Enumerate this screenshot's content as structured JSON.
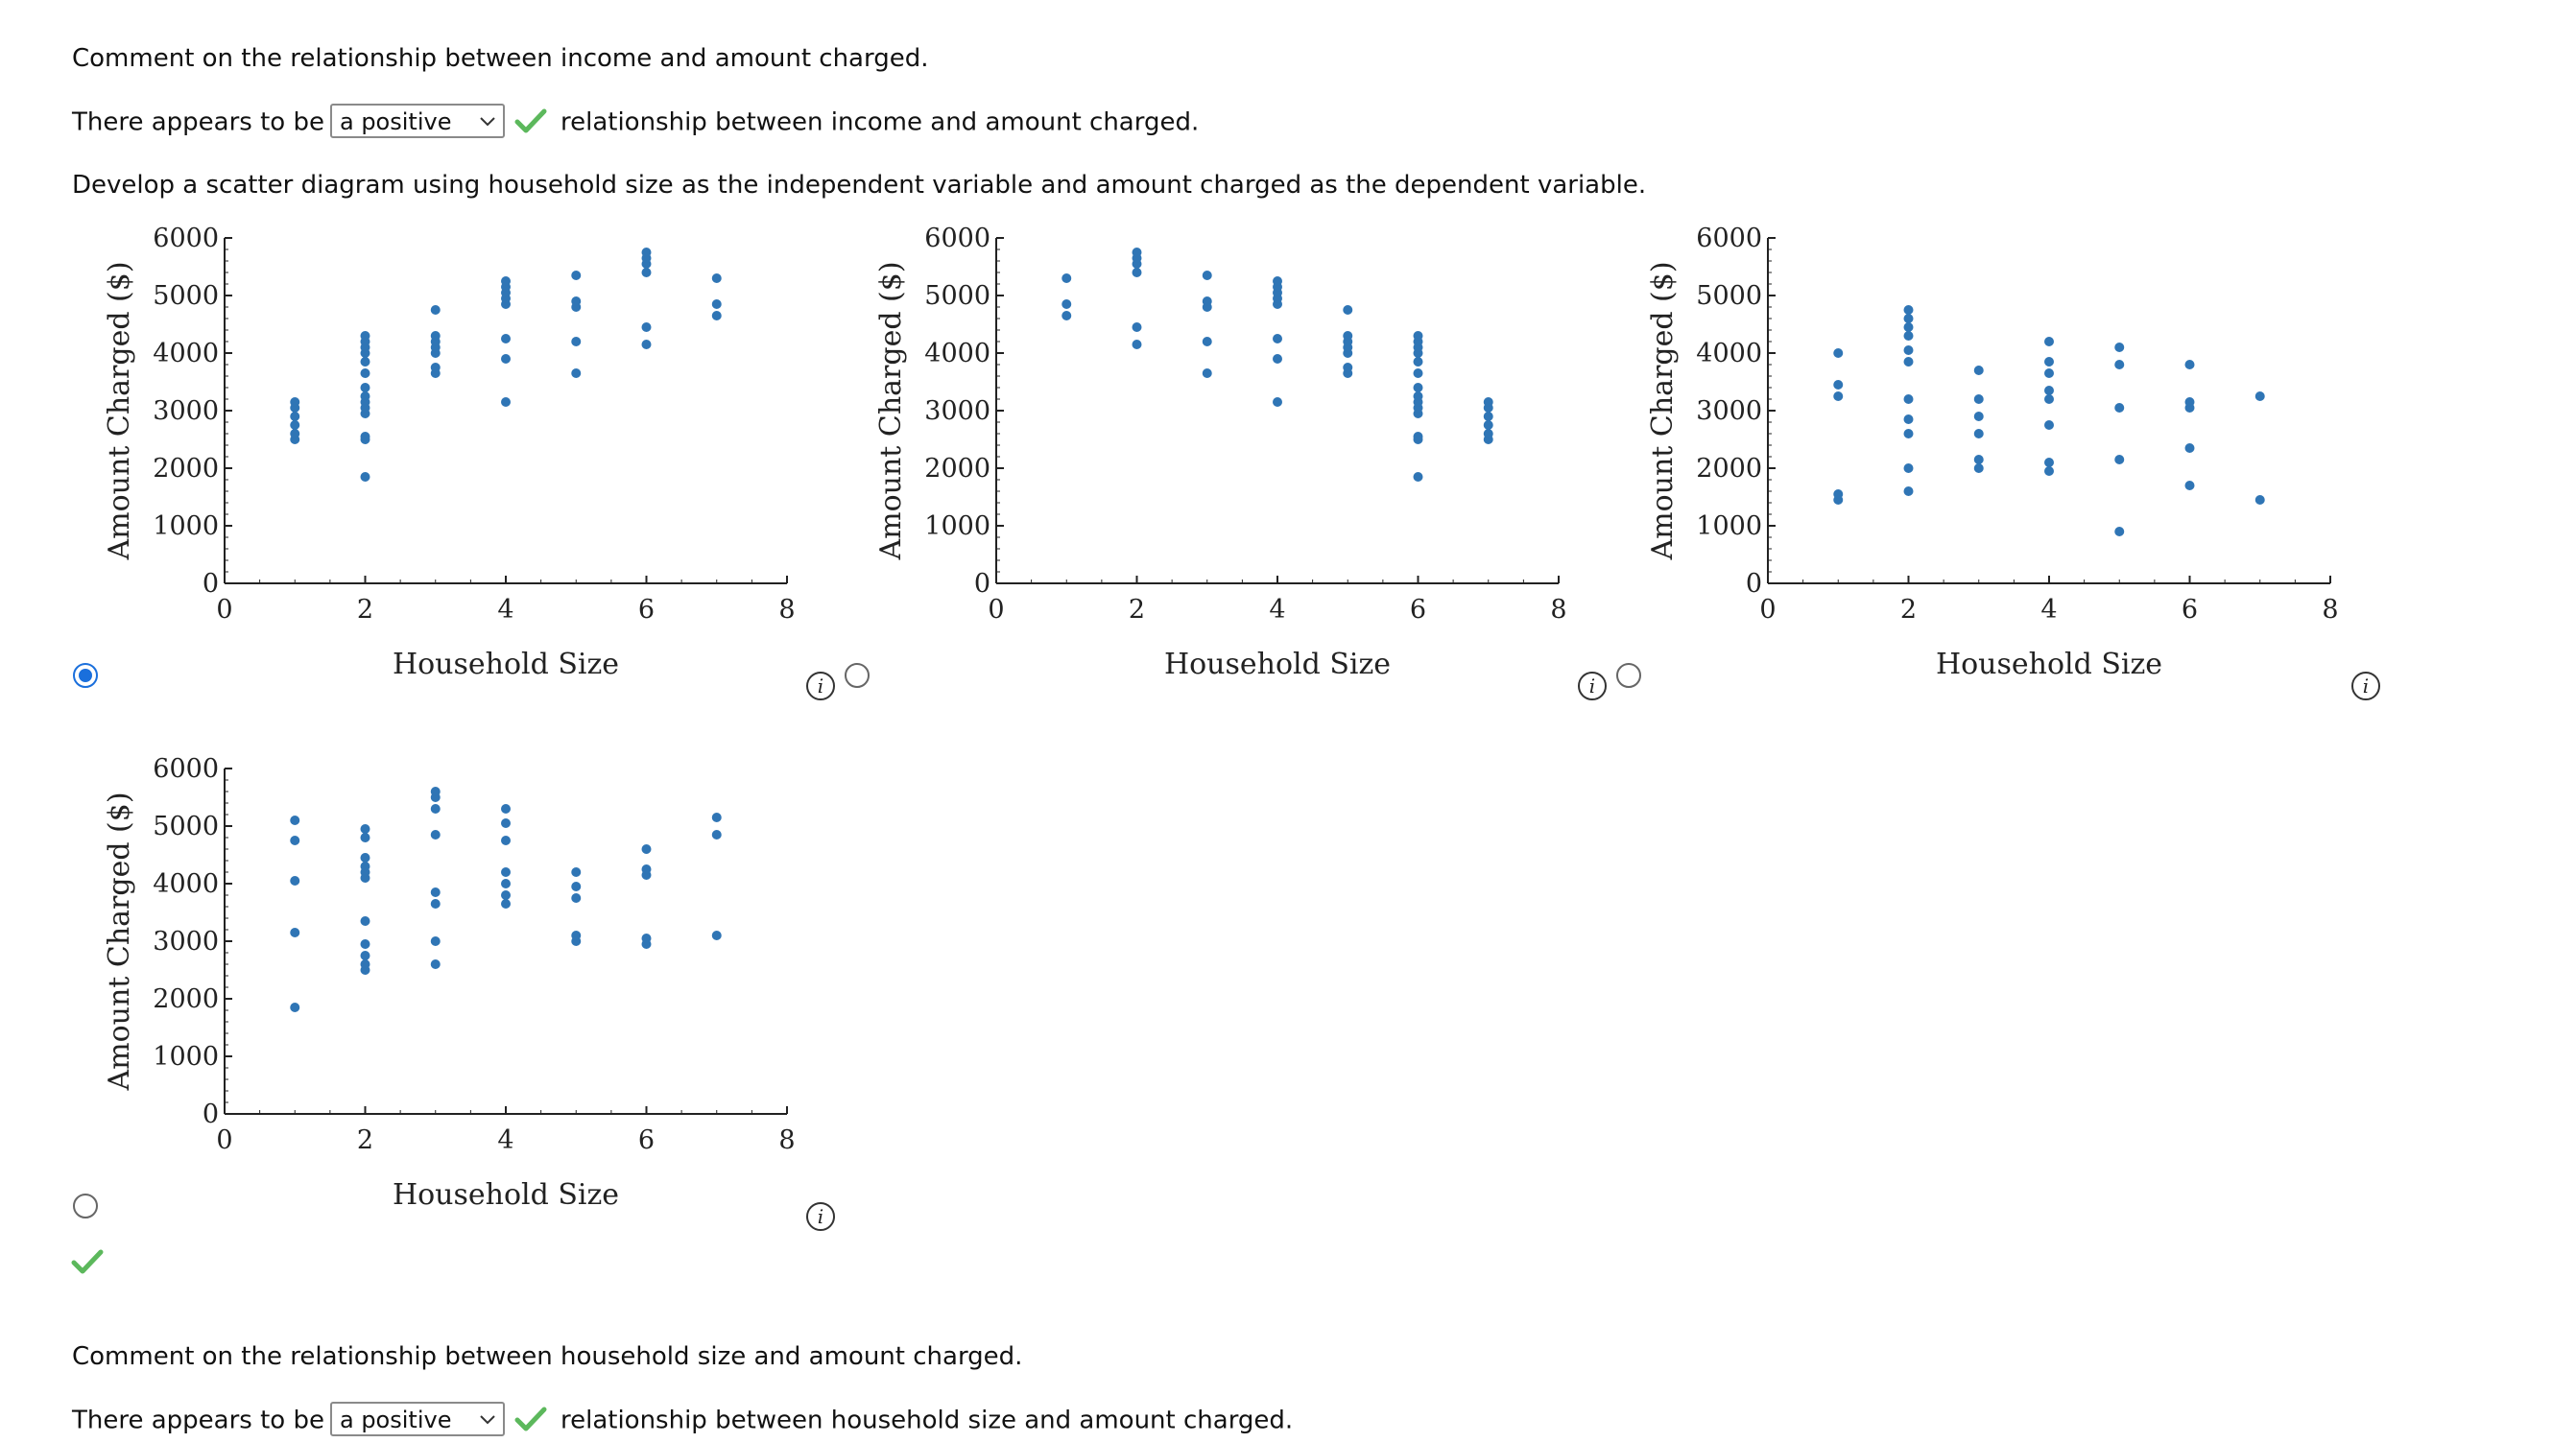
{
  "q1": {
    "prompt": "Comment on the relationship between income and amount charged.",
    "prefix": "There appears to be",
    "selected": "a positive",
    "suffix": "relationship between income and amount charged."
  },
  "q2": {
    "prompt": "Develop a scatter diagram using household size as the independent variable and amount charged as the dependent variable."
  },
  "q3": {
    "prompt": "Comment on the relationship between household size and amount charged.",
    "prefix": "There appears to be",
    "selected": "a positive",
    "suffix": "relationship between household size and amount charged."
  },
  "options": [
    {
      "selected": true
    },
    {
      "selected": false
    },
    {
      "selected": false
    },
    {
      "selected": false
    }
  ],
  "icons": {
    "check": "check-icon",
    "info": "info-icon",
    "chevron": "chevron-down-icon",
    "check_color": "#5cb85c",
    "accent": "#1a6fdc",
    "point_color": "#2f75b5"
  },
  "chart_data": [
    {
      "type": "scatter",
      "xlabel": "Household Size",
      "ylabel": "Amount Charged ($)",
      "xlim": [
        0,
        8
      ],
      "ylim": [
        0,
        6000
      ],
      "xticks": [
        "0",
        "2",
        "4",
        "6",
        "8"
      ],
      "yticks": [
        "0",
        "1000",
        "2000",
        "3000",
        "4000",
        "5000",
        "6000"
      ],
      "points": [
        [
          1,
          2500
        ],
        [
          1,
          2600
        ],
        [
          1,
          2750
        ],
        [
          1,
          2900
        ],
        [
          1,
          3050
        ],
        [
          1,
          3150
        ],
        [
          2,
          1850
        ],
        [
          2,
          2500
        ],
        [
          2,
          2550
        ],
        [
          2,
          2950
        ],
        [
          2,
          3050
        ],
        [
          2,
          3150
        ],
        [
          2,
          3250
        ],
        [
          2,
          3400
        ],
        [
          2,
          3650
        ],
        [
          2,
          3850
        ],
        [
          2,
          4000
        ],
        [
          2,
          4100
        ],
        [
          2,
          4200
        ],
        [
          2,
          4300
        ],
        [
          3,
          3650
        ],
        [
          3,
          3750
        ],
        [
          3,
          4000
        ],
        [
          3,
          4100
        ],
        [
          3,
          4200
        ],
        [
          3,
          4300
        ],
        [
          3,
          4750
        ],
        [
          4,
          3150
        ],
        [
          4,
          3900
        ],
        [
          4,
          4250
        ],
        [
          4,
          4850
        ],
        [
          4,
          4950
        ],
        [
          4,
          5050
        ],
        [
          4,
          5150
        ],
        [
          4,
          5250
        ],
        [
          5,
          3650
        ],
        [
          5,
          4200
        ],
        [
          5,
          4800
        ],
        [
          5,
          4900
        ],
        [
          5,
          5350
        ],
        [
          6,
          4150
        ],
        [
          6,
          4450
        ],
        [
          6,
          5400
        ],
        [
          6,
          5550
        ],
        [
          6,
          5650
        ],
        [
          6,
          5750
        ],
        [
          7,
          4650
        ],
        [
          7,
          4850
        ],
        [
          7,
          5300
        ]
      ]
    },
    {
      "type": "scatter",
      "xlabel": "Household Size",
      "ylabel": "Amount Charged ($)",
      "xlim": [
        0,
        8
      ],
      "ylim": [
        0,
        6000
      ],
      "xticks": [
        "0",
        "2",
        "4",
        "6",
        "8"
      ],
      "yticks": [
        "0",
        "1000",
        "2000",
        "3000",
        "4000",
        "5000",
        "6000"
      ],
      "points": [
        [
          1,
          4650
        ],
        [
          1,
          4850
        ],
        [
          1,
          5300
        ],
        [
          2,
          4150
        ],
        [
          2,
          4450
        ],
        [
          2,
          5400
        ],
        [
          2,
          5550
        ],
        [
          2,
          5650
        ],
        [
          2,
          5750
        ],
        [
          3,
          3650
        ],
        [
          3,
          4200
        ],
        [
          3,
          4800
        ],
        [
          3,
          4900
        ],
        [
          3,
          5350
        ],
        [
          4,
          3150
        ],
        [
          4,
          3900
        ],
        [
          4,
          4250
        ],
        [
          4,
          4850
        ],
        [
          4,
          4950
        ],
        [
          4,
          5050
        ],
        [
          4,
          5150
        ],
        [
          4,
          5250
        ],
        [
          5,
          3650
        ],
        [
          5,
          3750
        ],
        [
          5,
          4000
        ],
        [
          5,
          4100
        ],
        [
          5,
          4200
        ],
        [
          5,
          4300
        ],
        [
          5,
          4750
        ],
        [
          6,
          1850
        ],
        [
          6,
          2500
        ],
        [
          6,
          2550
        ],
        [
          6,
          2950
        ],
        [
          6,
          3050
        ],
        [
          6,
          3150
        ],
        [
          6,
          3250
        ],
        [
          6,
          3400
        ],
        [
          6,
          3650
        ],
        [
          6,
          3850
        ],
        [
          6,
          4000
        ],
        [
          6,
          4100
        ],
        [
          6,
          4200
        ],
        [
          6,
          4300
        ],
        [
          7,
          2500
        ],
        [
          7,
          2600
        ],
        [
          7,
          2750
        ],
        [
          7,
          2900
        ],
        [
          7,
          3050
        ],
        [
          7,
          3150
        ]
      ]
    },
    {
      "type": "scatter",
      "xlabel": "Household Size",
      "ylabel": "Amount Charged ($)",
      "xlim": [
        0,
        8
      ],
      "ylim": [
        0,
        6000
      ],
      "xticks": [
        "0",
        "2",
        "4",
        "6",
        "8"
      ],
      "yticks": [
        "0",
        "1000",
        "2000",
        "3000",
        "4000",
        "5000",
        "6000"
      ],
      "points": [
        [
          1,
          1450
        ],
        [
          1,
          1550
        ],
        [
          1,
          3250
        ],
        [
          1,
          3450
        ],
        [
          1,
          4000
        ],
        [
          2,
          1600
        ],
        [
          2,
          2000
        ],
        [
          2,
          2600
        ],
        [
          2,
          2850
        ],
        [
          2,
          3200
        ],
        [
          2,
          3850
        ],
        [
          2,
          4050
        ],
        [
          2,
          4300
        ],
        [
          2,
          4450
        ],
        [
          2,
          4600
        ],
        [
          2,
          4750
        ],
        [
          3,
          2000
        ],
        [
          3,
          2150
        ],
        [
          3,
          2600
        ],
        [
          3,
          2900
        ],
        [
          3,
          3200
        ],
        [
          3,
          3700
        ],
        [
          4,
          1950
        ],
        [
          4,
          2100
        ],
        [
          4,
          2750
        ],
        [
          4,
          3200
        ],
        [
          4,
          3350
        ],
        [
          4,
          3650
        ],
        [
          4,
          3850
        ],
        [
          4,
          4200
        ],
        [
          5,
          900
        ],
        [
          5,
          2150
        ],
        [
          5,
          3050
        ],
        [
          5,
          3800
        ],
        [
          5,
          4100
        ],
        [
          6,
          1700
        ],
        [
          6,
          2350
        ],
        [
          6,
          3050
        ],
        [
          6,
          3150
        ],
        [
          6,
          3800
        ],
        [
          7,
          1450
        ],
        [
          7,
          3250
        ]
      ]
    },
    {
      "type": "scatter",
      "xlabel": "Household Size",
      "ylabel": "Amount Charged ($)",
      "xlim": [
        0,
        8
      ],
      "ylim": [
        0,
        6000
      ],
      "xticks": [
        "0",
        "2",
        "4",
        "6",
        "8"
      ],
      "yticks": [
        "0",
        "1000",
        "2000",
        "3000",
        "4000",
        "5000",
        "6000"
      ],
      "points": [
        [
          1,
          1850
        ],
        [
          1,
          3150
        ],
        [
          1,
          4050
        ],
        [
          1,
          4750
        ],
        [
          1,
          5100
        ],
        [
          2,
          2500
        ],
        [
          2,
          2600
        ],
        [
          2,
          2750
        ],
        [
          2,
          2950
        ],
        [
          2,
          3350
        ],
        [
          2,
          4100
        ],
        [
          2,
          4200
        ],
        [
          2,
          4300
        ],
        [
          2,
          4450
        ],
        [
          2,
          4800
        ],
        [
          2,
          4950
        ],
        [
          3,
          2600
        ],
        [
          3,
          3000
        ],
        [
          3,
          3650
        ],
        [
          3,
          3850
        ],
        [
          3,
          4850
        ],
        [
          3,
          5300
        ],
        [
          3,
          5500
        ],
        [
          3,
          5600
        ],
        [
          4,
          3650
        ],
        [
          4,
          3800
        ],
        [
          4,
          4000
        ],
        [
          4,
          4200
        ],
        [
          4,
          4750
        ],
        [
          4,
          5050
        ],
        [
          4,
          5300
        ],
        [
          5,
          3000
        ],
        [
          5,
          3100
        ],
        [
          5,
          3750
        ],
        [
          5,
          3950
        ],
        [
          5,
          4200
        ],
        [
          6,
          2950
        ],
        [
          6,
          3050
        ],
        [
          6,
          4150
        ],
        [
          6,
          4250
        ],
        [
          6,
          4600
        ],
        [
          7,
          3100
        ],
        [
          7,
          4850
        ],
        [
          7,
          5150
        ]
      ]
    }
  ]
}
